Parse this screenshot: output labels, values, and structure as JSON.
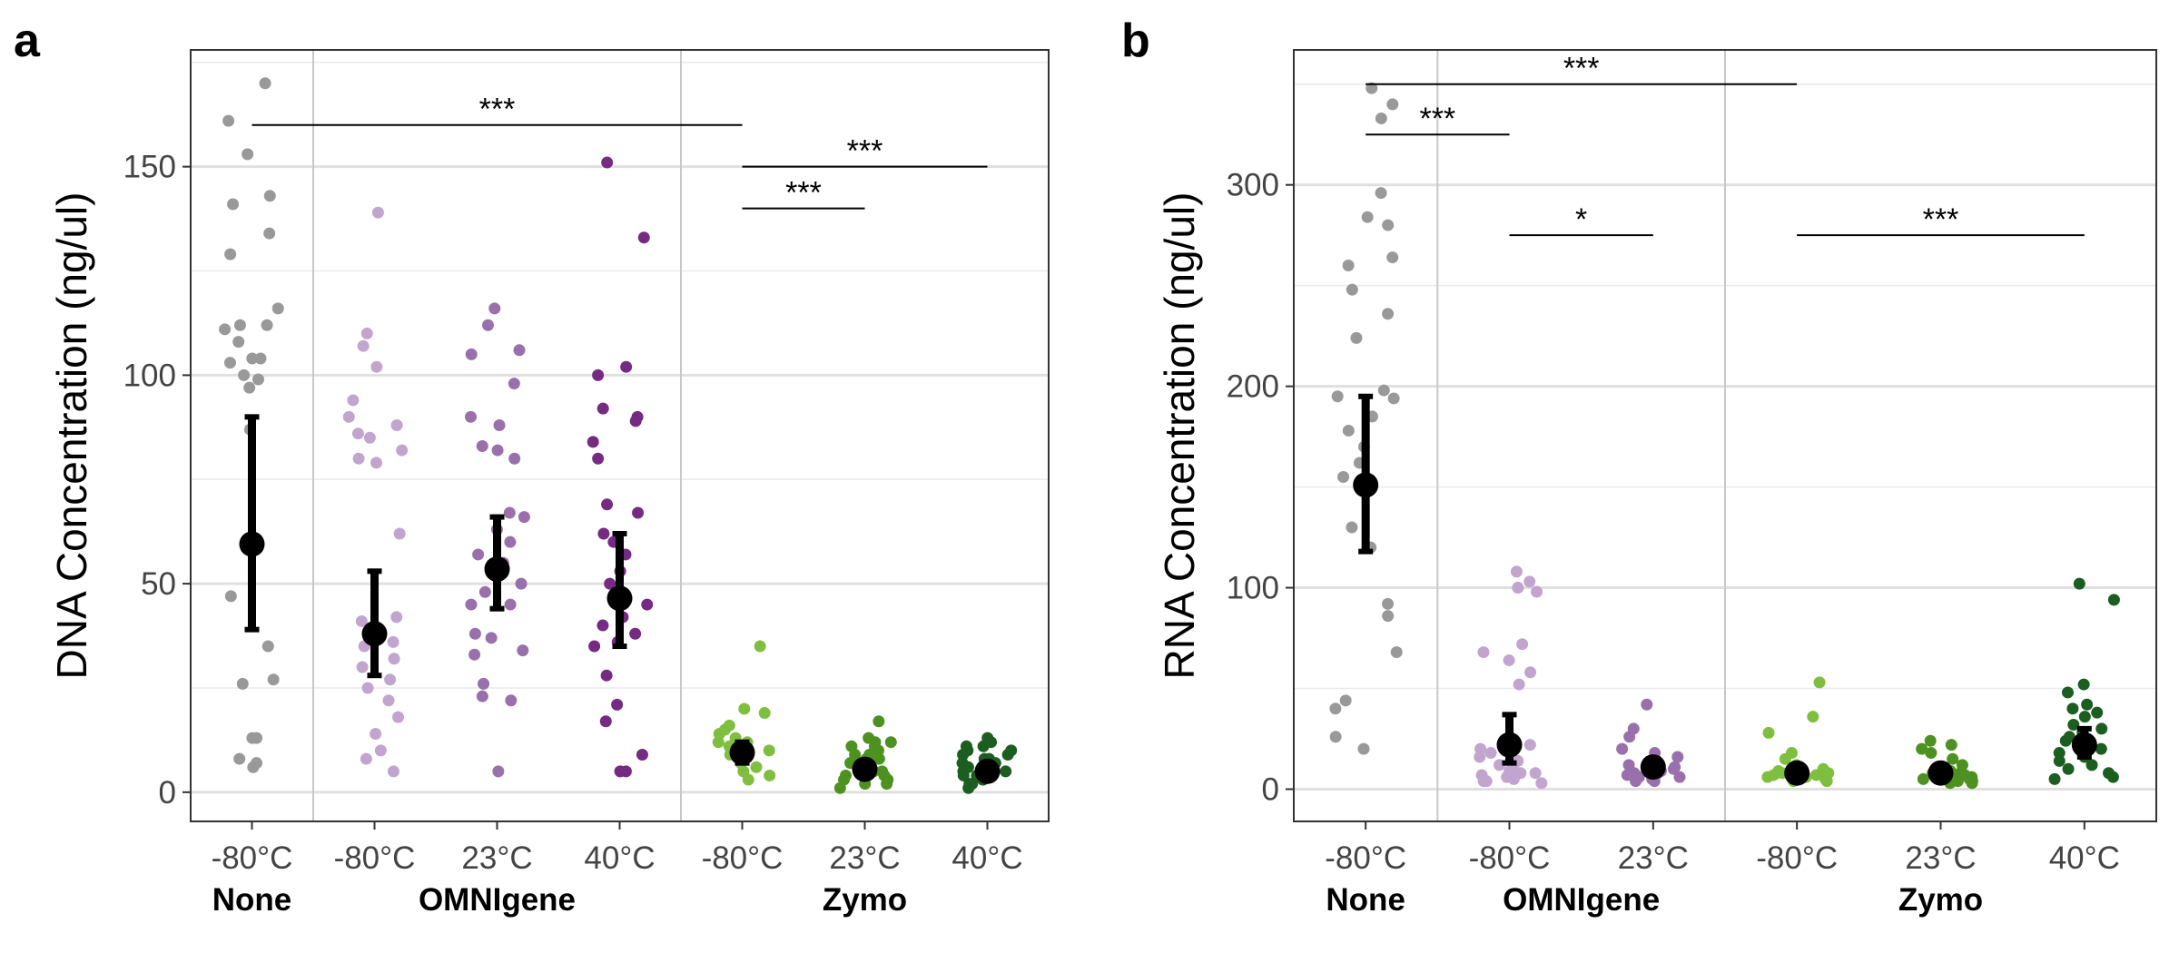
{
  "figure": {
    "panels": [
      "a",
      "b"
    ]
  },
  "colors": {
    "None": "#999999",
    "OMNIgene_-80": "#c2a5cf",
    "OMNIgene_23": "#9970ab",
    "OMNIgene_40": "#762a83",
    "Zymo_-80": "#7fbf3f",
    "Zymo_23": "#4d9221",
    "Zymo_40": "#1b5e20",
    "summary": "#000000"
  },
  "chart_data": [
    {
      "panel": "a",
      "type": "scatter",
      "ylabel": "DNA Concentration (ng/ul)",
      "ylim": [
        -7,
        178
      ],
      "yticks": [
        0,
        50,
        100,
        150
      ],
      "grid": true,
      "categories": [
        "-80°C",
        "-80°C",
        "23°C",
        "40°C",
        "-80°C",
        "23°C",
        "40°C"
      ],
      "groups": [
        {
          "name": "None",
          "span": [
            0,
            0
          ]
        },
        {
          "name": "OMNIgene",
          "span": [
            1,
            3
          ]
        },
        {
          "name": "Zymo",
          "span": [
            4,
            6
          ]
        }
      ],
      "series": [
        {
          "color_key": "None",
          "summary": {
            "mean": 59.5,
            "low": 39,
            "high": 90
          },
          "points": [
            170,
            161,
            153,
            143,
            141,
            134,
            129,
            116,
            112,
            112,
            111,
            108,
            104,
            104,
            103,
            100,
            99,
            97,
            87,
            47,
            35,
            27,
            26,
            13,
            13,
            8,
            7,
            6
          ]
        },
        {
          "color_key": "OMNIgene_-80",
          "summary": {
            "mean": 38,
            "low": 28,
            "high": 53
          },
          "points": [
            139,
            110,
            107,
            102,
            94,
            90,
            88,
            86,
            85,
            82,
            80,
            79,
            62,
            42,
            41,
            38,
            36,
            35,
            32,
            30,
            27,
            25,
            22,
            18,
            14,
            10,
            8,
            5
          ]
        },
        {
          "color_key": "OMNIgene_23",
          "summary": {
            "mean": 53.5,
            "low": 44,
            "high": 66
          },
          "points": [
            116,
            112,
            106,
            105,
            98,
            90,
            88,
            83,
            82,
            80,
            67,
            66,
            63,
            60,
            57,
            55,
            50,
            48,
            45,
            45,
            38,
            37,
            34,
            33,
            26,
            23,
            22,
            5
          ]
        },
        {
          "color_key": "OMNIgene_40",
          "summary": {
            "mean": 46.5,
            "low": 35,
            "high": 62
          },
          "points": [
            151,
            133,
            102,
            100,
            92,
            90,
            89,
            84,
            80,
            69,
            67,
            62,
            60,
            57,
            53,
            50,
            45,
            42,
            40,
            38,
            36,
            35,
            28,
            21,
            17,
            9,
            5,
            5
          ]
        },
        {
          "color_key": "Zymo_-80",
          "summary": {
            "mean": 9.5,
            "low": 7,
            "high": 12
          },
          "points": [
            35,
            20,
            19,
            16,
            15,
            14,
            13,
            12,
            12,
            11,
            10,
            9,
            8,
            7,
            6,
            5,
            4,
            3
          ]
        },
        {
          "color_key": "Zymo_23",
          "summary": {
            "mean": 5.5,
            "low": 4,
            "high": 7
          },
          "points": [
            17,
            13,
            12,
            12,
            11,
            11,
            10,
            9,
            9,
            8,
            8,
            7,
            7,
            6,
            6,
            5,
            5,
            4,
            4,
            3,
            3,
            2,
            2,
            1
          ]
        },
        {
          "color_key": "Zymo_40",
          "summary": {
            "mean": 5,
            "low": 3.5,
            "high": 6.5
          },
          "points": [
            13,
            12,
            11,
            11,
            10,
            10,
            9,
            9,
            8,
            8,
            7,
            7,
            6,
            6,
            5,
            5,
            5,
            4,
            4,
            3,
            3,
            2,
            2,
            1
          ]
        }
      ],
      "annotations": [
        {
          "label": "***",
          "from": 0,
          "to": 4,
          "y": 160
        },
        {
          "label": "***",
          "from": 4,
          "to": 6,
          "y": 150
        },
        {
          "label": "***",
          "from": 4,
          "to": 5,
          "y": 140
        }
      ]
    },
    {
      "panel": "b",
      "type": "scatter",
      "ylabel": "RNA Concentration (ng/ul)",
      "ylim": [
        -16,
        367
      ],
      "yticks": [
        0,
        100,
        200,
        300
      ],
      "grid": true,
      "categories": [
        "-80°C",
        "-80°C",
        "23°C",
        "-80°C",
        "23°C",
        "40°C"
      ],
      "groups": [
        {
          "name": "None",
          "span": [
            0,
            0
          ]
        },
        {
          "name": "OMNIgene",
          "span": [
            1,
            2
          ]
        },
        {
          "name": "Zymo",
          "span": [
            3,
            5
          ]
        }
      ],
      "series": [
        {
          "color_key": "None",
          "summary": {
            "mean": 151,
            "low": 118,
            "high": 195
          },
          "points": [
            348,
            340,
            333,
            296,
            284,
            280,
            264,
            260,
            248,
            236,
            224,
            198,
            195,
            194,
            185,
            178,
            170,
            162,
            155,
            130,
            120,
            92,
            86,
            68,
            44,
            40,
            26,
            20
          ]
        },
        {
          "color_key": "OMNIgene_-80",
          "summary": {
            "mean": 22,
            "low": 13,
            "high": 37
          },
          "points": [
            108,
            103,
            100,
            100,
            98,
            72,
            68,
            64,
            58,
            52,
            22,
            20,
            18,
            16,
            14,
            12,
            10,
            9,
            8,
            8,
            7,
            6,
            5,
            4,
            4,
            3
          ]
        },
        {
          "color_key": "OMNIgene_23",
          "summary": {
            "mean": 11,
            "low": 8,
            "high": 15
          },
          "points": [
            42,
            30,
            26,
            20,
            18,
            16,
            14,
            12,
            11,
            10,
            9,
            8,
            8,
            7,
            6,
            6,
            5,
            5,
            4,
            4
          ]
        },
        {
          "color_key": "Zymo_-80",
          "summary": {
            "mean": 8,
            "low": 6,
            "high": 10
          },
          "points": [
            53,
            36,
            28,
            18,
            15,
            12,
            10,
            9,
            8,
            8,
            7,
            7,
            6,
            6,
            5,
            5,
            4,
            4
          ]
        },
        {
          "color_key": "Zymo_23",
          "summary": {
            "mean": 8,
            "low": 6,
            "high": 10
          },
          "points": [
            24,
            22,
            20,
            18,
            15,
            12,
            10,
            9,
            8,
            8,
            7,
            7,
            6,
            6,
            5,
            5,
            4,
            4,
            3,
            3
          ]
        },
        {
          "color_key": "Zymo_40",
          "summary": {
            "mean": 22,
            "low": 16,
            "high": 30
          },
          "points": [
            102,
            94,
            52,
            48,
            42,
            40,
            38,
            36,
            32,
            30,
            28,
            26,
            24,
            22,
            20,
            18,
            16,
            14,
            12,
            10,
            8,
            6,
            5
          ]
        }
      ],
      "annotations": [
        {
          "label": "***",
          "from": 0,
          "to": 3,
          "y": 350
        },
        {
          "label": "***",
          "from": 0,
          "to": 1,
          "y": 325
        },
        {
          "label": "*",
          "from": 1,
          "to": 2,
          "y": 275
        },
        {
          "label": "***",
          "from": 3,
          "to": 5,
          "y": 275
        }
      ]
    }
  ]
}
